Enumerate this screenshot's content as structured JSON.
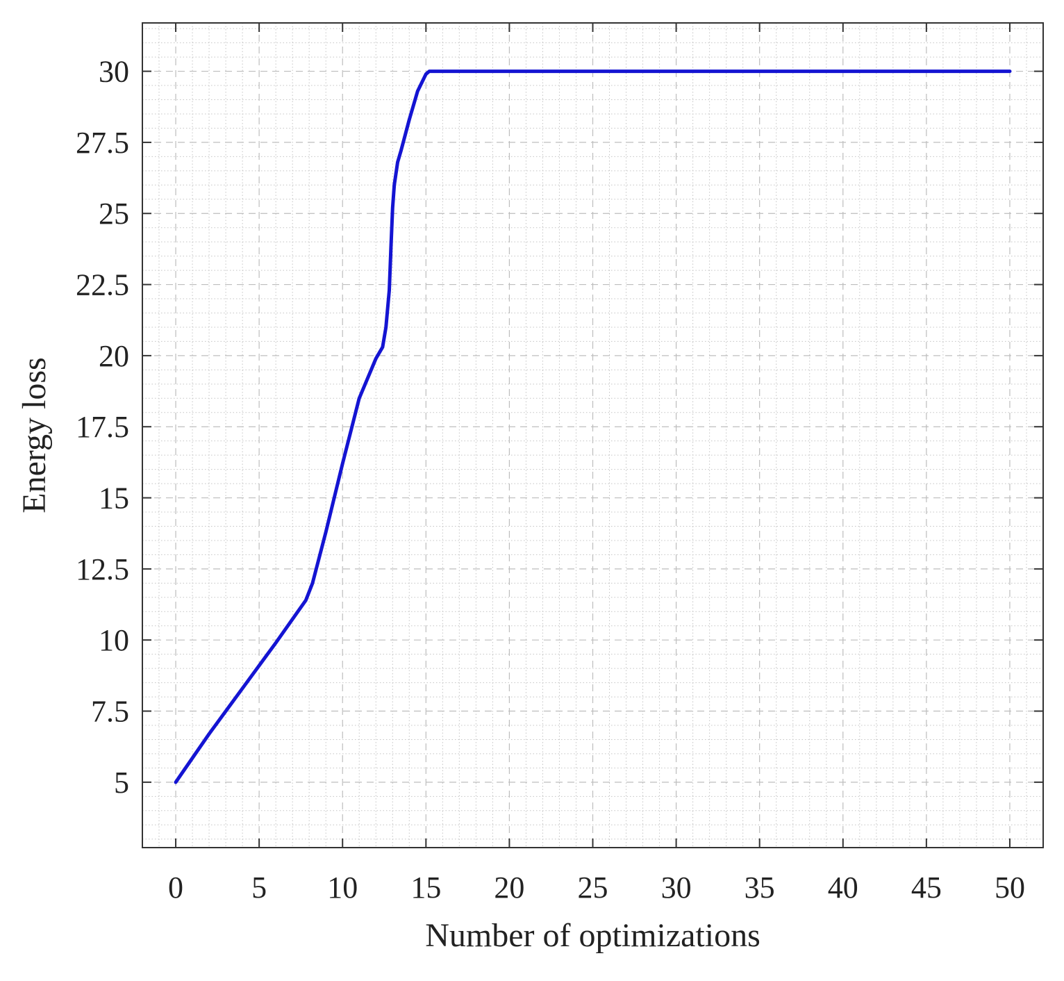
{
  "chart_data": {
    "type": "line",
    "title": "",
    "xlabel": "Number of optimizations",
    "ylabel": "Energy loss",
    "xlim": [
      -2,
      52
    ],
    "ylim": [
      2.7,
      31.7
    ],
    "xticks": [
      0,
      5,
      10,
      15,
      20,
      25,
      30,
      35,
      40,
      45,
      50
    ],
    "xtick_labels": [
      "0",
      "5",
      "10",
      "15",
      "20",
      "25",
      "30",
      "35",
      "40",
      "45",
      "50"
    ],
    "yticks": [
      5,
      7.5,
      10,
      12.5,
      15,
      17.5,
      20,
      22.5,
      25,
      27.5,
      30
    ],
    "ytick_labels": [
      "5",
      "7.5",
      "10",
      "12.5",
      "15",
      "17.5",
      "20",
      "22.5",
      "25",
      "27.5",
      "30"
    ],
    "grid": true,
    "minor_grid": true,
    "legend": "none",
    "series": [
      {
        "color": "#1414d2",
        "x": [
          0,
          2,
          4,
          6,
          7.8,
          8.2,
          9,
          10,
          11,
          12,
          12.4,
          12.6,
          12.8,
          12.9,
          13,
          13.1,
          13.3,
          13.5,
          14,
          14.5,
          15,
          15.2,
          15.5,
          16,
          20,
          30,
          40,
          50
        ],
        "y": [
          5.0,
          6.7,
          8.3,
          9.9,
          11.4,
          12.0,
          13.8,
          16.2,
          18.5,
          19.9,
          20.3,
          21.0,
          22.3,
          23.8,
          25.2,
          26.0,
          26.8,
          27.2,
          28.3,
          29.3,
          29.9,
          30.0,
          30.0,
          30.0,
          30.0,
          30.0,
          30.0,
          30.0
        ]
      }
    ]
  }
}
